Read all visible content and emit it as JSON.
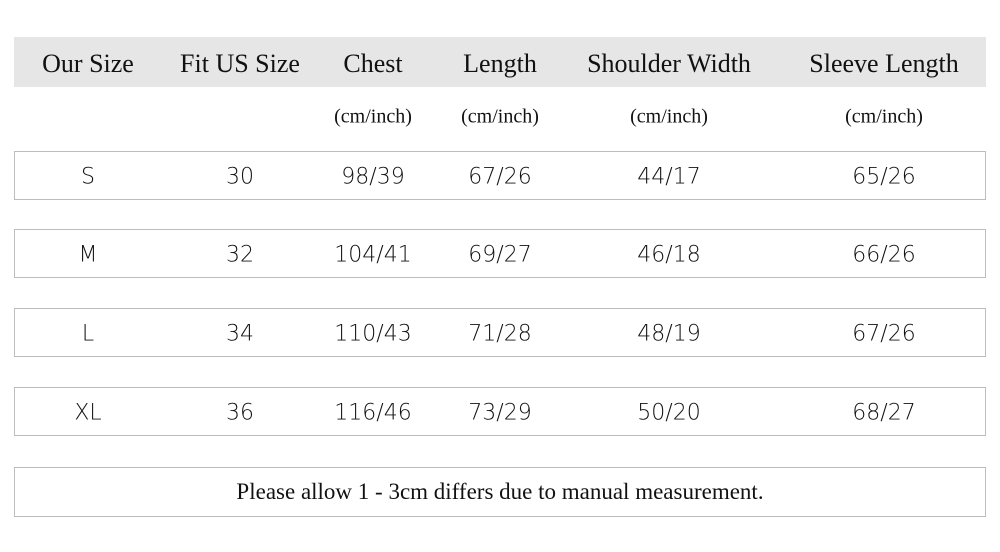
{
  "table": {
    "headers": [
      "Our Size",
      "Fit US Size",
      "Chest",
      "Length",
      "Shoulder Width",
      "Sleeve Length"
    ],
    "units": [
      "(cm/inch)",
      "(cm/inch)",
      "(cm/inch)",
      "(cm/inch)"
    ],
    "rows": [
      [
        "S",
        "30",
        "98/39",
        "67/26",
        "44/17",
        "65/26"
      ],
      [
        "M",
        "32",
        "104/41",
        "69/27",
        "46/18",
        "66/26"
      ],
      [
        "L",
        "34",
        "110/43",
        "71/28",
        "48/19",
        "67/26"
      ],
      [
        "XL",
        "36",
        "116/46",
        "73/29",
        "50/20",
        "68/27"
      ]
    ]
  },
  "note": "Please allow 1 - 3cm differs due to manual measurement."
}
